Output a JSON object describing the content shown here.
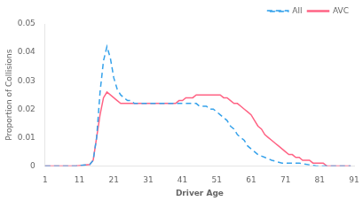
{
  "chart_data": {
    "type": "line",
    "xlabel": "Driver Age",
    "ylabel": "Proportion of Collisions",
    "xlim": [
      1,
      91
    ],
    "ylim": [
      0,
      0.05
    ],
    "xticks": [
      1,
      11,
      21,
      31,
      41,
      51,
      61,
      71,
      81,
      91
    ],
    "yticks": [
      0,
      0.01,
      0.02,
      0.03,
      0.04,
      0.05
    ],
    "grid": false,
    "legend": "upper right",
    "series": [
      {
        "name": "All",
        "line_style": "dashed",
        "x": [
          1,
          10,
          14,
          15,
          16,
          17,
          18,
          19,
          20,
          21,
          22,
          23,
          24,
          25,
          26,
          27,
          28,
          29,
          30,
          31,
          32,
          33,
          34,
          35,
          36,
          37,
          38,
          39,
          40,
          41,
          42,
          43,
          44,
          45,
          46,
          47,
          48,
          49,
          50,
          51,
          52,
          53,
          54,
          55,
          56,
          57,
          58,
          59,
          60,
          61,
          62,
          63,
          65,
          67,
          70,
          75,
          80,
          85,
          90
        ],
        "values": [
          0,
          0,
          0.0005,
          0.002,
          0.01,
          0.026,
          0.037,
          0.042,
          0.038,
          0.031,
          0.027,
          0.025,
          0.024,
          0.023,
          0.023,
          0.022,
          0.022,
          0.022,
          0.022,
          0.022,
          0.022,
          0.022,
          0.022,
          0.022,
          0.022,
          0.022,
          0.022,
          0.022,
          0.022,
          0.022,
          0.022,
          0.022,
          0.022,
          0.022,
          0.021,
          0.021,
          0.021,
          0.02,
          0.02,
          0.019,
          0.018,
          0.017,
          0.016,
          0.014,
          0.013,
          0.011,
          0.01,
          0.009,
          0.007,
          0.006,
          0.005,
          0.004,
          0.003,
          0.002,
          0.001,
          0.001,
          0.0,
          0.0,
          0.0
        ]
      },
      {
        "name": "AVC",
        "line_style": "solid",
        "x": [
          1,
          10,
          14,
          15,
          16,
          17,
          18,
          19,
          20,
          21,
          22,
          23,
          24,
          25,
          26,
          27,
          28,
          29,
          30,
          31,
          32,
          33,
          34,
          35,
          36,
          37,
          38,
          39,
          40,
          41,
          42,
          43,
          44,
          45,
          46,
          47,
          48,
          49,
          50,
          51,
          52,
          53,
          54,
          55,
          56,
          57,
          58,
          59,
          60,
          61,
          62,
          63,
          64,
          65,
          66,
          67,
          68,
          69,
          70,
          71,
          72,
          73,
          74,
          75,
          76,
          77,
          78,
          79,
          80,
          81,
          82,
          83,
          84,
          85,
          86,
          87,
          88,
          89,
          90
        ],
        "values": [
          0,
          0,
          0.0005,
          0.002,
          0.01,
          0.018,
          0.024,
          0.026,
          0.025,
          0.024,
          0.023,
          0.022,
          0.022,
          0.022,
          0.022,
          0.022,
          0.022,
          0.022,
          0.022,
          0.022,
          0.022,
          0.022,
          0.022,
          0.022,
          0.022,
          0.022,
          0.022,
          0.022,
          0.023,
          0.023,
          0.024,
          0.024,
          0.024,
          0.025,
          0.025,
          0.025,
          0.025,
          0.025,
          0.025,
          0.025,
          0.025,
          0.024,
          0.024,
          0.023,
          0.022,
          0.022,
          0.021,
          0.02,
          0.019,
          0.018,
          0.016,
          0.014,
          0.013,
          0.011,
          0.01,
          0.009,
          0.008,
          0.007,
          0.006,
          0.005,
          0.004,
          0.004,
          0.003,
          0.003,
          0.002,
          0.002,
          0.002,
          0.001,
          0.001,
          0.001,
          0.001,
          0.0,
          0.0,
          0.0,
          0.0,
          0.0,
          0.0,
          0.0,
          0.0
        ]
      }
    ]
  }
}
